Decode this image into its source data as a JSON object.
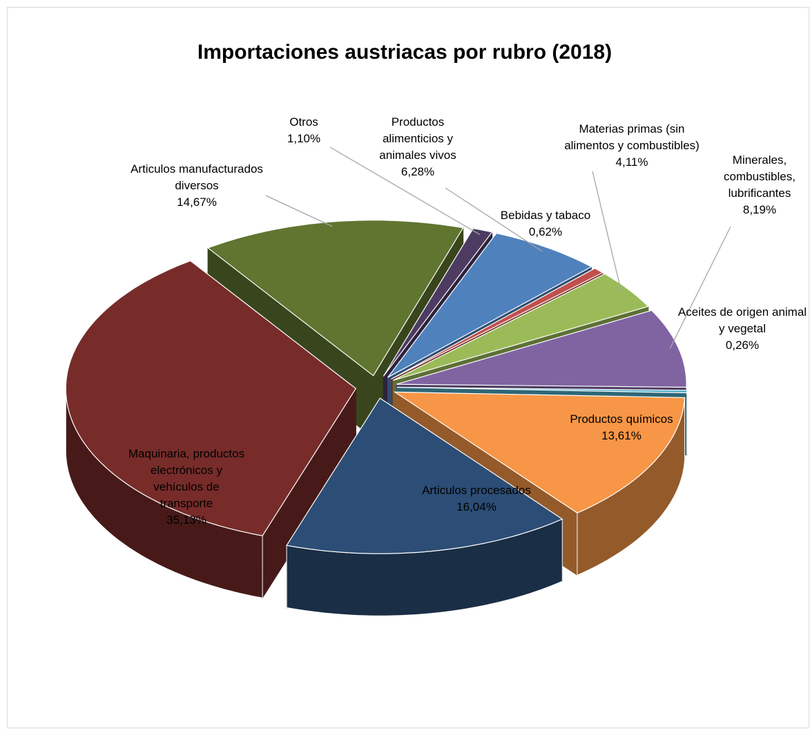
{
  "chart_data": {
    "type": "pie3d",
    "title": "Importaciones austriacas por rubro (2018)",
    "categories": [
      "Productos alimenticios y animales vivos",
      "Bebidas y tabaco",
      "Materias primas (sin alimentos y combustibles)",
      "Minerales, combustibles, lubrificantes",
      "Aceites de origen animal y vegetal",
      "Productos químicos",
      "Articulos procesados",
      "Maquinaria, productos electrónicos y vehículos de transporte",
      "Articulos manufacturados diversos",
      "Otros"
    ],
    "values": [
      6.28,
      0.62,
      4.11,
      8.19,
      0.26,
      13.61,
      16.04,
      35.13,
      14.67,
      1.1
    ],
    "value_labels": [
      "6,28%",
      "0,62%",
      "4,11%",
      "8,19%",
      "0,26%",
      "13,61%",
      "16,04%",
      "35,13%",
      "14,67%",
      "1,10%"
    ],
    "colors": [
      "#4f81bd",
      "#c0504d",
      "#9bbb59",
      "#8064a2",
      "#4bacc6",
      "#f79646",
      "#2c4d75",
      "#772c2a",
      "#5f7530",
      "#4d3b62"
    ]
  }
}
